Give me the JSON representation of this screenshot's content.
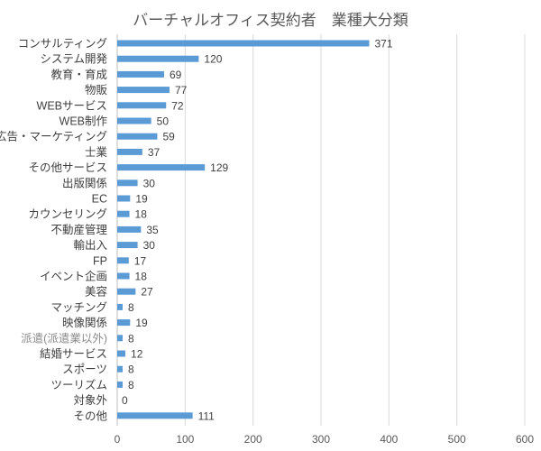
{
  "chart_data": {
    "type": "bar",
    "orientation": "horizontal",
    "title": "バーチャルオフィス契約者　業種大分類",
    "xlabel": "",
    "ylabel": "",
    "xlim": [
      0,
      600
    ],
    "xticks": [
      0,
      100,
      200,
      300,
      400,
      500,
      600
    ],
    "grid": true,
    "legend": "none",
    "bar_color": "#5B9BD5",
    "categories": [
      "コンサルティング",
      "システム開発",
      "教育・育成",
      "物販",
      "WEBサービス",
      "WEB制作",
      "広告・マーケティング",
      "士業",
      "その他サービス",
      "出版関係",
      "EC",
      "カウンセリング",
      "不動産管理",
      "輸出入",
      "FP",
      "イベント企画",
      "美容",
      "マッチング",
      "映像関係",
      "派遣(派遣業以外)",
      "結婚サービス",
      "スポーツ",
      "ツーリズム",
      "対象外",
      "その他"
    ],
    "values": [
      371,
      120,
      69,
      77,
      72,
      50,
      59,
      37,
      129,
      30,
      19,
      18,
      35,
      30,
      17,
      18,
      27,
      8,
      19,
      8,
      12,
      8,
      8,
      0,
      111
    ],
    "muted_categories": [
      "派遣(派遣業以外)"
    ]
  }
}
